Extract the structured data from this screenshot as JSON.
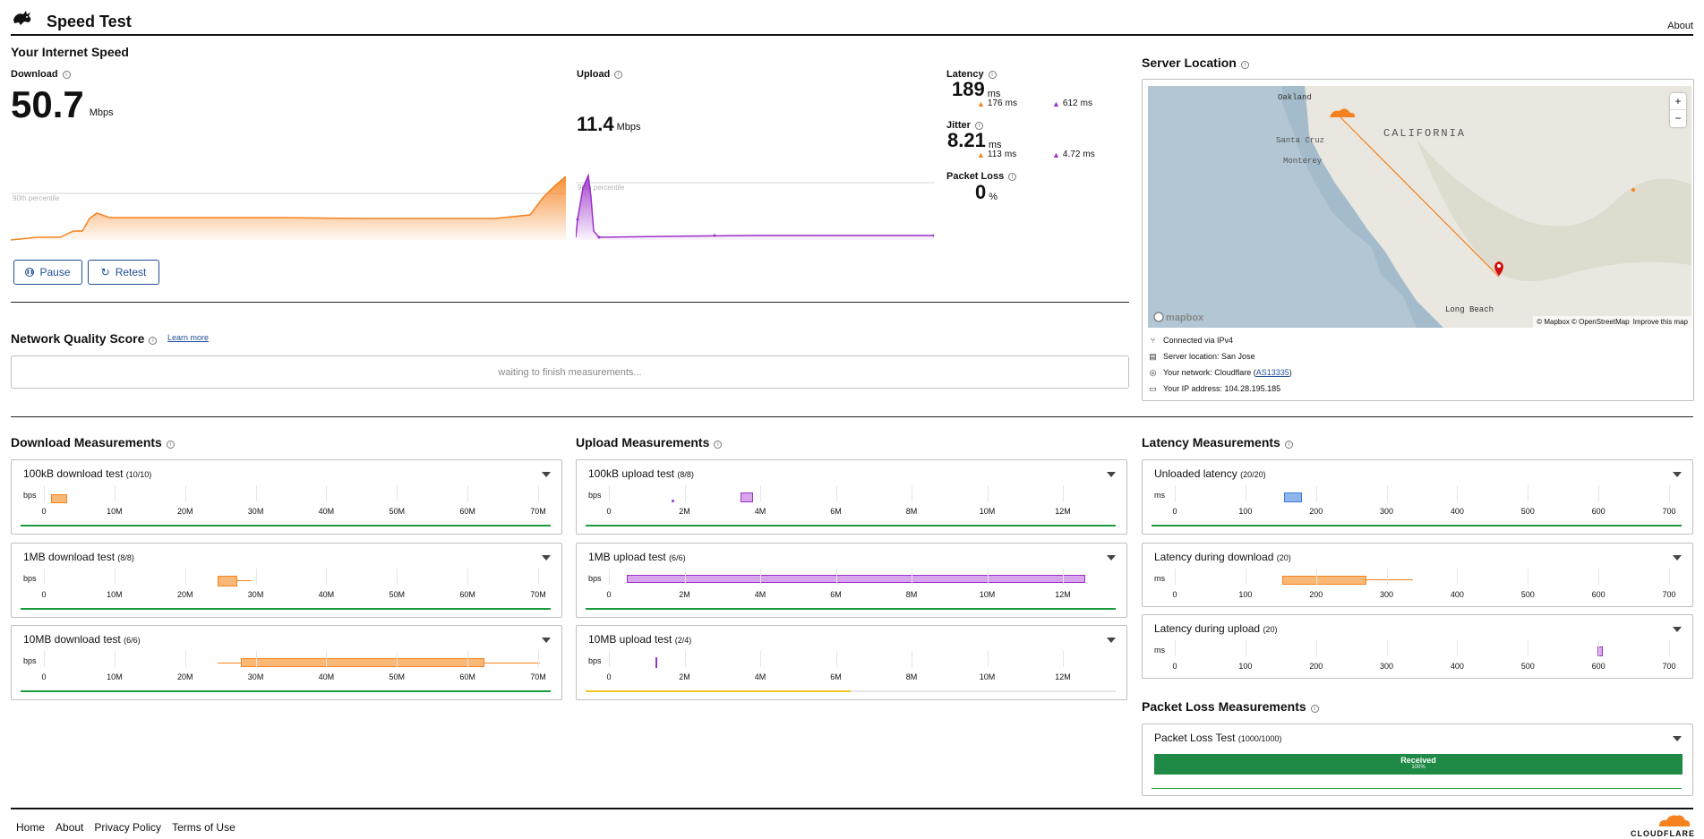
{
  "header": {
    "title": "Speed Test",
    "about": "About"
  },
  "speed": {
    "section_title": "Your Internet Speed",
    "download_label": "Download",
    "download_value": "50.7",
    "download_unit": "Mbps",
    "upload_label": "Upload",
    "upload_value": "11.4",
    "upload_unit": "Mbps",
    "percentile_label": "90th percentile",
    "pause_label": "Pause",
    "retest_label": "Retest",
    "latency_label": "Latency",
    "latency_value": "189",
    "latency_unit": "ms",
    "latency_down": "176",
    "latency_up": "612",
    "jitter_label": "Jitter",
    "jitter_value": "8.21",
    "jitter_unit": "ms",
    "jitter_down": "113",
    "jitter_up": "4.72",
    "ms": "ms",
    "packet_loss_label": "Packet Loss",
    "packet_loss_value": "0",
    "packet_loss_unit": "%"
  },
  "quality": {
    "title": "Network Quality Score",
    "learn_more": "Learn more",
    "waiting": "waiting to finish measurements..."
  },
  "server": {
    "title": "Server Location",
    "map_labels": {
      "oakland": "Oakland",
      "santa_cruz": "Santa Cruz",
      "monterey": "Monterey",
      "california": "CALIFORNIA",
      "long_beach": "Long Beach",
      "mapbox": "mapbox",
      "attribution": "© Mapbox © OpenStreetMap",
      "improve": "Improve this map",
      "zoom_in": "+",
      "zoom_out": "−"
    },
    "connected": "Connected via IPv4",
    "server_location": "Server location: San Jose",
    "network_prefix": "Your network: Cloudflare (",
    "network_as": "AS13335",
    "network_suffix": ")",
    "ip": "Your IP address: 104.28.195.185"
  },
  "measurements": {
    "download_title": "Download Measurements",
    "upload_title": "Upload Measurements",
    "latency_title": "Latency Measurements",
    "packet_title": "Packet Loss Measurements",
    "bps": "bps",
    "ms_unit": "ms",
    "download_ticks": [
      "0",
      "10M",
      "20M",
      "30M",
      "40M",
      "50M",
      "60M",
      "70M"
    ],
    "upload_ticks": [
      "0",
      "2M",
      "4M",
      "6M",
      "8M",
      "10M",
      "12M"
    ],
    "latency_ticks": [
      "0",
      "100",
      "200",
      "300",
      "400",
      "500",
      "600",
      "700"
    ],
    "download_cards": [
      {
        "title": "100kB download test",
        "count": "(10/10)"
      },
      {
        "title": "1MB download test",
        "count": "(8/8)"
      },
      {
        "title": "10MB download test",
        "count": "(6/6)"
      }
    ],
    "upload_cards": [
      {
        "title": "100kB upload test",
        "count": "(8/8)"
      },
      {
        "title": "1MB upload test",
        "count": "(6/6)"
      },
      {
        "title": "10MB upload test",
        "count": "(2/4)"
      }
    ],
    "latency_cards": [
      {
        "title": "Unloaded latency",
        "count": "(20/20)"
      },
      {
        "title": "Latency during download",
        "count": "(20)"
      },
      {
        "title": "Latency during upload",
        "count": "(20)"
      }
    ],
    "packet_card": {
      "title": "Packet Loss Test",
      "count": "(1000/1000)",
      "received": "Received",
      "received_pct": "100%"
    }
  },
  "footer": {
    "home": "Home",
    "about": "About",
    "privacy": "Privacy Policy",
    "terms": "Terms of Use",
    "brand": "CLOUDFLARE"
  },
  "colors": {
    "download": "#f6821f",
    "upload": "#9b30c9",
    "latency": "#3c7dd9",
    "ok": "#1a9b3e",
    "partial": "#f3c623",
    "link": "#1f4e96"
  },
  "icons": [
    "rabbit-logo-icon",
    "info-icon",
    "pause-icon",
    "retest-icon",
    "chevron-down-icon",
    "network-icon",
    "server-icon",
    "location-pin-icon",
    "ip-card-icon",
    "cloudflare-logo-icon"
  ]
}
